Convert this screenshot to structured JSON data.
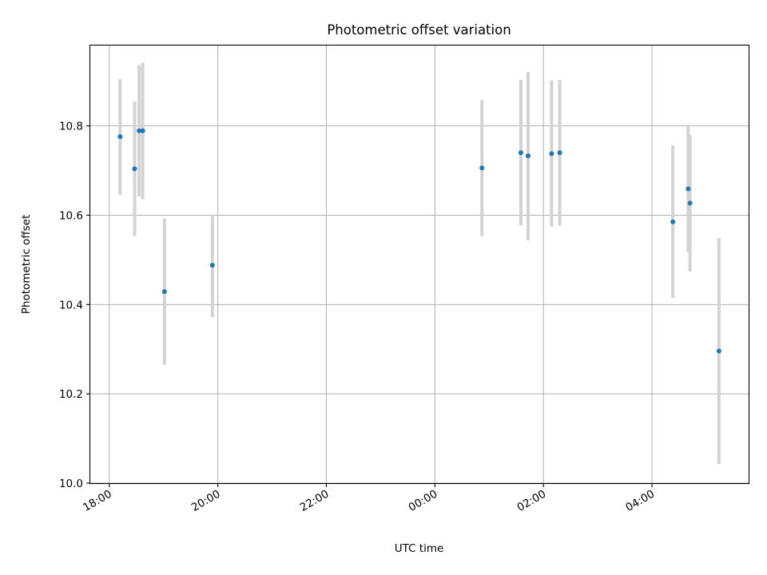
{
  "chart_data": {
    "type": "scatter",
    "title": "Photometric offset variation",
    "xlabel": "UTC time",
    "ylabel": "Photometric offset",
    "x_ticks": [
      "18:00",
      "20:00",
      "22:00",
      "00:00",
      "02:00",
      "04:00"
    ],
    "x_tick_hours": [
      0,
      2,
      4,
      6,
      8,
      10
    ],
    "xlim_hours": [
      -0.35,
      11.78
    ],
    "ylim": [
      10.0,
      10.98
    ],
    "y_ticks": [
      10.0,
      10.2,
      10.4,
      10.6,
      10.8
    ],
    "y_tick_labels": [
      "10.0",
      "10.2",
      "10.4",
      "10.6",
      "10.8"
    ],
    "grid": true,
    "points": [
      {
        "x": "18:12",
        "y": 10.776,
        "err_low": 10.645,
        "err_high": 10.905
      },
      {
        "x": "18:28",
        "y": 10.704,
        "err_low": 10.553,
        "err_high": 10.855
      },
      {
        "x": "18:33",
        "y": 10.789,
        "err_low": 10.642,
        "err_high": 10.936
      },
      {
        "x": "18:37",
        "y": 10.789,
        "err_low": 10.636,
        "err_high": 10.942
      },
      {
        "x": "19:01",
        "y": 10.429,
        "err_low": 10.265,
        "err_high": 10.593
      },
      {
        "x": "19:54",
        "y": 10.488,
        "err_low": 10.372,
        "err_high": 10.601
      },
      {
        "x": "00:52",
        "y": 10.706,
        "err_low": 10.553,
        "err_high": 10.858
      },
      {
        "x": "01:35",
        "y": 10.74,
        "err_low": 10.577,
        "err_high": 10.903
      },
      {
        "x": "01:43",
        "y": 10.733,
        "err_low": 10.544,
        "err_high": 10.921
      },
      {
        "x": "02:09",
        "y": 10.738,
        "err_low": 10.574,
        "err_high": 10.902
      },
      {
        "x": "02:18",
        "y": 10.74,
        "err_low": 10.577,
        "err_high": 10.903
      },
      {
        "x": "04:23",
        "y": 10.585,
        "err_low": 10.415,
        "err_high": 10.756
      },
      {
        "x": "04:40",
        "y": 10.659,
        "err_low": 10.517,
        "err_high": 10.802
      },
      {
        "x": "04:42",
        "y": 10.627,
        "err_low": 10.474,
        "err_high": 10.78
      },
      {
        "x": "05:14",
        "y": 10.296,
        "err_low": 10.043,
        "err_high": 10.549
      }
    ],
    "colors": {
      "point": "#1f77b4",
      "errorbar": "#d3d3d3",
      "grid": "#b0b0b0"
    }
  }
}
